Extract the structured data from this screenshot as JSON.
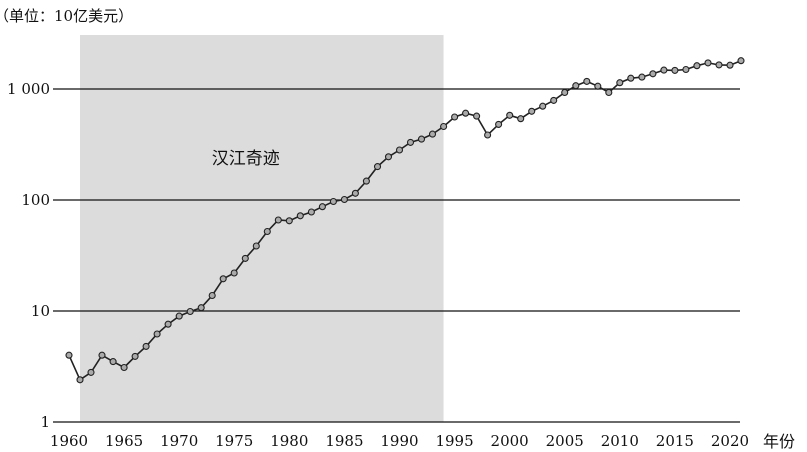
{
  "chart_data": {
    "type": "line",
    "unit_label": "（单位：10亿美元）",
    "xlabel": "年份",
    "ylabel": "",
    "yscale": "log",
    "ylim": [
      1,
      3000
    ],
    "xlim": [
      1960,
      2021
    ],
    "y_ticks": [
      1,
      10,
      100,
      1000
    ],
    "y_tick_labels": [
      "1",
      "10",
      "100",
      "1 000"
    ],
    "x_ticks": [
      1960,
      1965,
      1970,
      1975,
      1980,
      1985,
      1990,
      1995,
      2000,
      2005,
      2010,
      2015,
      2020
    ],
    "grid": "horizontal lines at 10, 100, 1000",
    "shaded_region": {
      "x_start": 1961,
      "x_end": 1994,
      "label": "汉江奇迹",
      "color": "#dcdcdc"
    },
    "line_color": "#222222",
    "marker_fill": "#aaaaaa",
    "x": [
      1960,
      1961,
      1962,
      1963,
      1964,
      1965,
      1966,
      1967,
      1968,
      1969,
      1970,
      1971,
      1972,
      1973,
      1974,
      1975,
      1976,
      1977,
      1978,
      1979,
      1980,
      1981,
      1982,
      1983,
      1984,
      1985,
      1986,
      1987,
      1988,
      1989,
      1990,
      1991,
      1992,
      1993,
      1994,
      1995,
      1996,
      1997,
      1998,
      1999,
      2000,
      2001,
      2002,
      2003,
      2004,
      2005,
      2006,
      2007,
      2008,
      2009,
      2010,
      2011,
      2012,
      2013,
      2014,
      2015,
      2016,
      2017,
      2018,
      2019,
      2020,
      2021
    ],
    "values": [
      4.0,
      2.4,
      2.8,
      4.0,
      3.5,
      3.1,
      3.9,
      4.8,
      6.2,
      7.6,
      9.0,
      9.9,
      10.7,
      13.8,
      19.5,
      22.0,
      29.8,
      38.5,
      52.0,
      66.0,
      65.0,
      72.0,
      78.0,
      87.0,
      97.0,
      101.0,
      115.0,
      148.0,
      200.0,
      245.0,
      282.0,
      330.0,
      354.0,
      392.0,
      459.0,
      560.0,
      605.0,
      570.0,
      385.0,
      480.0,
      580.0,
      540.0,
      630.0,
      700.0,
      790.0,
      930.0,
      1070.0,
      1170.0,
      1060.0,
      930.0,
      1140.0,
      1250.0,
      1280.0,
      1370.0,
      1480.0,
      1470.0,
      1500.0,
      1620.0,
      1720.0,
      1650.0,
      1640.0,
      1800.0
    ]
  },
  "annotations": {
    "unit": "（单位：10亿美元）",
    "x_unit": "年份"
  }
}
